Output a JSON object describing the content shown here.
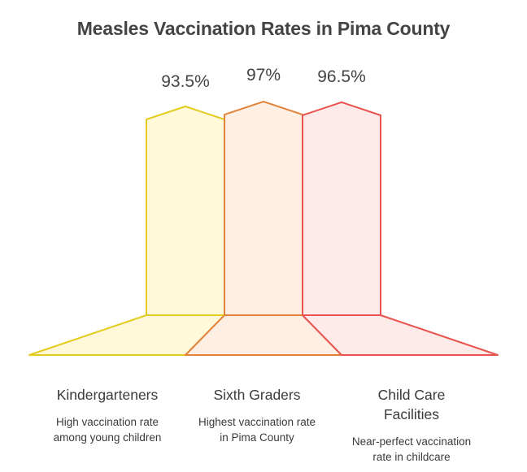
{
  "chart_data": {
    "type": "bar",
    "title": "Measles Vaccination Rates in Pima County",
    "categories": [
      "Kindergarteners",
      "Sixth Graders",
      "Child Care Facilities"
    ],
    "values": [
      93.5,
      97,
      96.5
    ],
    "value_labels": [
      "93.5%",
      "97%",
      "96.5%"
    ],
    "descriptions": [
      "High vaccination rate among young children",
      "Highest vaccination rate in Pima County",
      "Near-perfect vaccination rate in childcare"
    ],
    "unit": "%",
    "colors": [
      {
        "stroke": "#e3cc1f",
        "fill": "#fff8d9"
      },
      {
        "stroke": "#e2823a",
        "fill": "#ffefe3"
      },
      {
        "stroke": "#e8534f",
        "fill": "#ffeaea"
      }
    ]
  }
}
